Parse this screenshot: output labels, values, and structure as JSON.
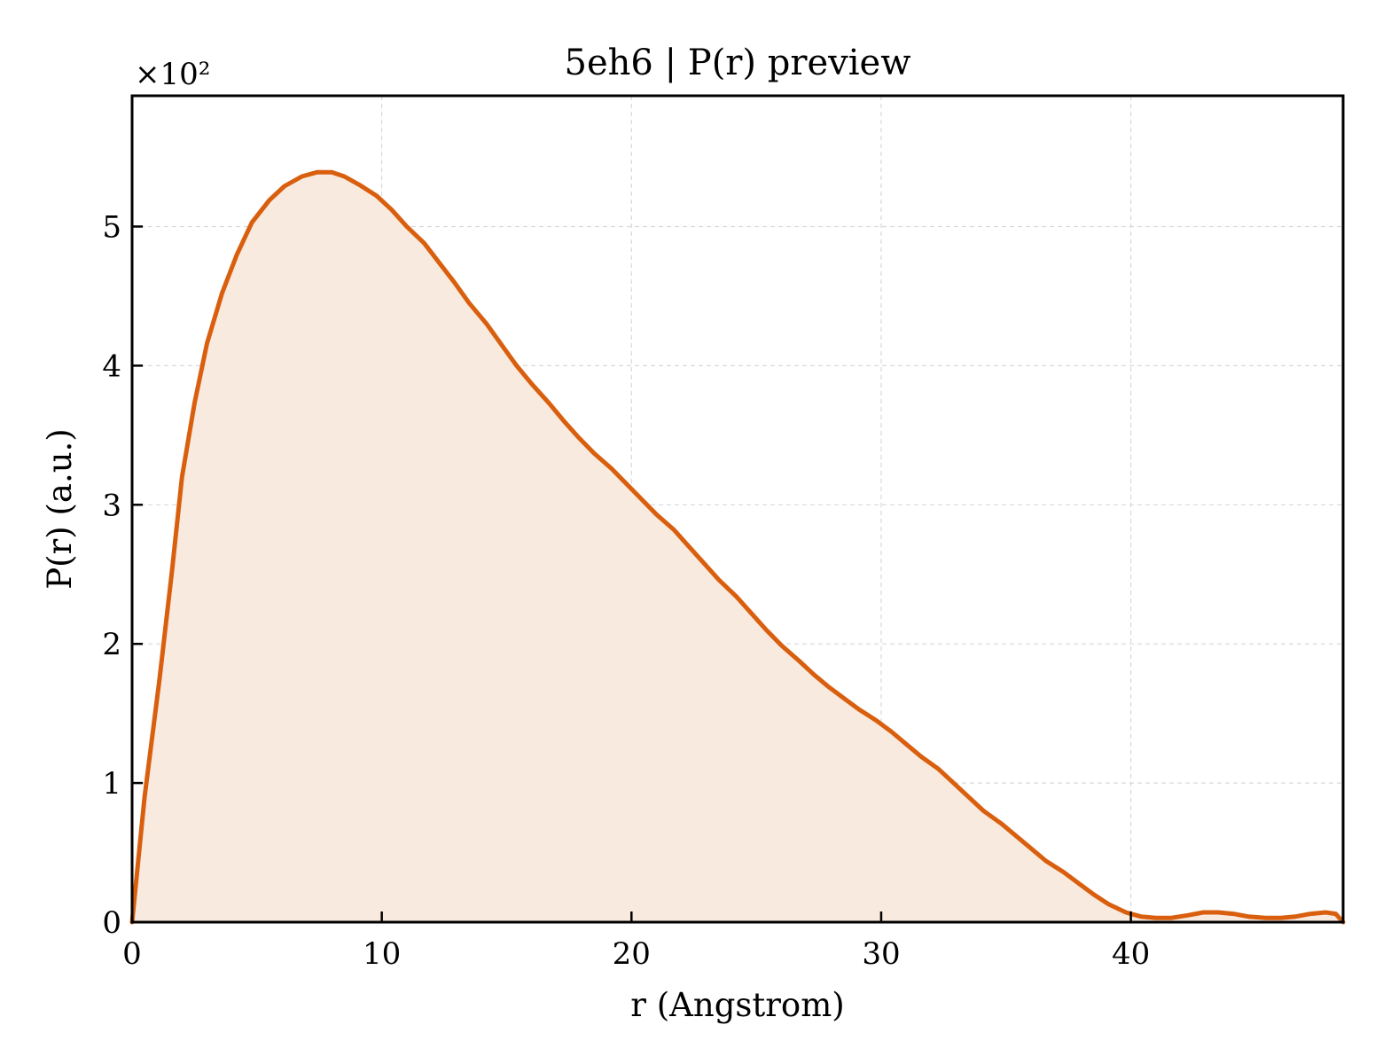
{
  "chart_data": {
    "type": "area",
    "title": "5eh6 | P(r) preview",
    "xlabel": "r (Angstrom)",
    "ylabel": "P(r) (a.u.)",
    "y_multiplier_label": "×10²",
    "y_multiplier": 100,
    "xlim": [
      0,
      48.5
    ],
    "ylim": [
      0,
      594
    ],
    "x_ticks": [
      0,
      10,
      20,
      30,
      40
    ],
    "x_tick_labels": [
      "0",
      "10",
      "20",
      "30",
      "40"
    ],
    "y_ticks": [
      0,
      100,
      200,
      300,
      400,
      500
    ],
    "y_tick_labels": [
      "0",
      "1",
      "2",
      "3",
      "4",
      "5"
    ],
    "grid": true,
    "colors": {
      "line": "#d95f0e",
      "fill": "#f9eadf",
      "grid": "#d9d9d9"
    },
    "series": [
      {
        "x": [
          0,
          0.5,
          1.1,
          1.6,
          2.0,
          2.5,
          3.0,
          3.6,
          4.2,
          4.8,
          5.5,
          6.1,
          6.8,
          7.4,
          8.0,
          8.5,
          9.1,
          9.8,
          10.4,
          11.0,
          11.7,
          12.3,
          12.9,
          13.5,
          14.2,
          14.8,
          15.4,
          16.0,
          16.7,
          17.3,
          17.9,
          18.5,
          19.2,
          19.8,
          20.4,
          21.0,
          21.7,
          22.3,
          22.9,
          23.5,
          24.2,
          24.8,
          25.4,
          26.0,
          26.7,
          27.3,
          27.9,
          28.5,
          29.1,
          29.8,
          30.4,
          31.0,
          31.6,
          32.3,
          32.9,
          33.5,
          34.1,
          34.8,
          35.4,
          36.0,
          36.6,
          37.3,
          37.9,
          38.5,
          39.1,
          39.8,
          40.4,
          41.0,
          41.6,
          42.3,
          42.9,
          43.5,
          44.1,
          44.7,
          45.4,
          46.0,
          46.6,
          47.2,
          47.8,
          48.2,
          48.5
        ],
        "y": [
          0,
          90,
          175,
          253,
          320,
          373,
          416,
          452,
          480,
          503,
          519,
          529,
          536,
          539,
          539,
          536,
          530,
          522,
          512,
          500,
          488,
          474,
          460,
          445,
          430,
          415,
          400,
          387,
          373,
          360,
          348,
          337,
          326,
          315,
          304,
          293,
          282,
          270,
          258,
          246,
          234,
          222,
          210,
          199,
          188,
          178,
          169,
          161,
          153,
          145,
          137,
          128,
          119,
          110,
          100,
          90,
          80,
          71,
          62,
          53,
          44,
          36,
          28,
          20,
          13,
          7,
          4,
          3,
          3,
          5,
          7,
          7,
          6,
          4,
          3,
          3,
          4,
          6,
          7,
          6,
          0
        ]
      }
    ]
  }
}
